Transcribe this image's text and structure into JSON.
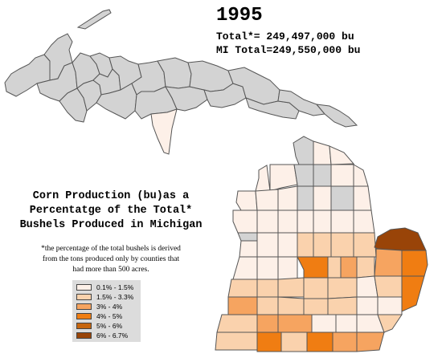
{
  "year": "1995",
  "total_line": "Total*= 249,497,000 bu",
  "mi_total_line": "MI Total=249,550,000 bu",
  "title_lines": [
    "Corn Production (bu)as a",
    "Percentatge of the Total*",
    "Bushels Produced in Michigan"
  ],
  "footnote_lines": [
    "*the percentage of the total bushels is derived",
    "from the tons produced only by counties that",
    "had more than 500 acres."
  ],
  "legend": [
    {
      "label": "0.1% - 1.5%",
      "color": "#fdf0e8"
    },
    {
      "label": "1.5% - 3.3%",
      "color": "#fad2ad"
    },
    {
      "label": "3% - 4%",
      "color": "#f6a460"
    },
    {
      "label": "4% - 5%",
      "color": "#f07d12"
    },
    {
      "label": "5% - 6%",
      "color": "#c7650e"
    },
    {
      "label": "6% - 6.7%",
      "color": "#994408"
    }
  ],
  "no_data_color": "#d3d3d3"
}
